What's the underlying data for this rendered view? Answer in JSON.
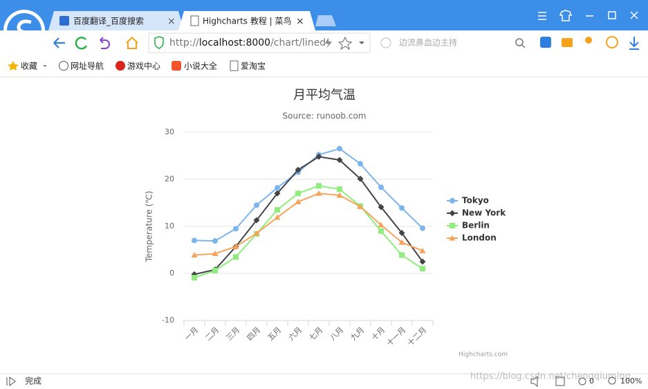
{
  "browser": {
    "tabs": [
      "百度翻译_百度搜索",
      "Highcharts 教程 | 菜鸟"
    ],
    "address": [
      "http://",
      "localhost:8000",
      "/chart/lined"
    ],
    "search_placeholder": "边流鼻血边主持",
    "bookmarks": [
      "收藏",
      "网址导航",
      "游戏中心",
      "小说大全",
      "爱淘宝"
    ],
    "status": "完成",
    "status_count": "0",
    "zoom": "100%",
    "watermark": "https://blog.csdn.net/chengqiuming"
  },
  "chart_data": {
    "type": "line",
    "title": "月平均气温",
    "subtitle": "Source: runoob.com",
    "y_label": "Temperature (℃)",
    "credits": "Highcharts.com",
    "categories": [
      "一月",
      "二月",
      "三月",
      "四月",
      "五月",
      "六月",
      "七月",
      "八月",
      "九月",
      "十月",
      "十一月",
      "十二月"
    ],
    "series": [
      {
        "name": "Tokyo",
        "color": "#7cb5ec",
        "symbol": "circle",
        "values": [
          7.0,
          6.9,
          9.5,
          14.5,
          18.2,
          21.5,
          25.2,
          26.5,
          23.3,
          18.3,
          13.9,
          9.6
        ]
      },
      {
        "name": "New York",
        "color": "#434348",
        "symbol": "diamond",
        "values": [
          -0.2,
          0.8,
          5.7,
          11.3,
          17.0,
          22.0,
          24.8,
          24.1,
          20.1,
          14.1,
          8.6,
          2.5
        ]
      },
      {
        "name": "Berlin",
        "color": "#90ed7d",
        "symbol": "square",
        "values": [
          -0.9,
          0.6,
          3.5,
          8.4,
          13.5,
          17.0,
          18.6,
          17.9,
          14.3,
          9.0,
          3.9,
          1.0
        ]
      },
      {
        "name": "London",
        "color": "#f7a35c",
        "symbol": "triangle",
        "values": [
          3.9,
          4.2,
          5.7,
          8.5,
          11.9,
          15.2,
          17.0,
          16.6,
          14.2,
          10.3,
          6.6,
          4.8
        ]
      }
    ],
    "ylim": [
      -10,
      30
    ],
    "yticks": [
      -10,
      0,
      10,
      20,
      30
    ],
    "grid": true,
    "legend": "right"
  }
}
